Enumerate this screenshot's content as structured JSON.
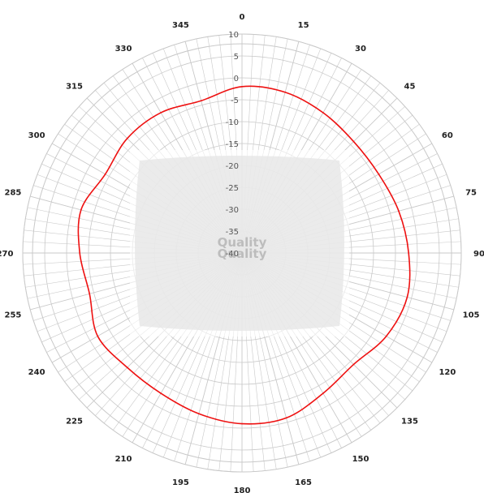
{
  "chart_data": {
    "type": "polar-line",
    "angular_ticks": [
      "0",
      "15",
      "30",
      "45",
      "60",
      "75",
      "90",
      "105",
      "120",
      "135",
      "150",
      "165",
      "180",
      "195",
      "210",
      "225",
      "240",
      "255",
      "270",
      "285",
      "300",
      "315",
      "330",
      "345"
    ],
    "angular_minor_step_deg": 3,
    "radial_ticks": [
      10,
      5,
      0,
      -5,
      -10,
      -15,
      -20,
      -25,
      -30,
      -35,
      -40
    ],
    "radial_range": [
      -40,
      10
    ],
    "grid": true,
    "series": [
      {
        "color": "#ee1111",
        "theta": [
          0,
          15,
          30,
          45,
          60,
          75,
          90,
          105,
          120,
          135,
          150,
          165,
          180,
          195,
          210,
          225,
          240,
          255,
          270,
          285,
          300,
          315,
          330,
          345,
          360
        ],
        "r": [
          -2,
          -2,
          -3,
          -4,
          -4,
          -3,
          -2,
          -1,
          -2,
          -4,
          -3,
          -1,
          -1,
          -2,
          -3,
          -3,
          -2,
          -4,
          -3,
          -2,
          -4,
          -3,
          -3,
          -4,
          -2
        ]
      }
    ],
    "colors": {
      "grid": "#c9c9c9",
      "trace": "#ee1111",
      "overlay": "#e6e6e6"
    }
  },
  "watermark": {
    "line1": "Quality",
    "line2": "Quality"
  }
}
